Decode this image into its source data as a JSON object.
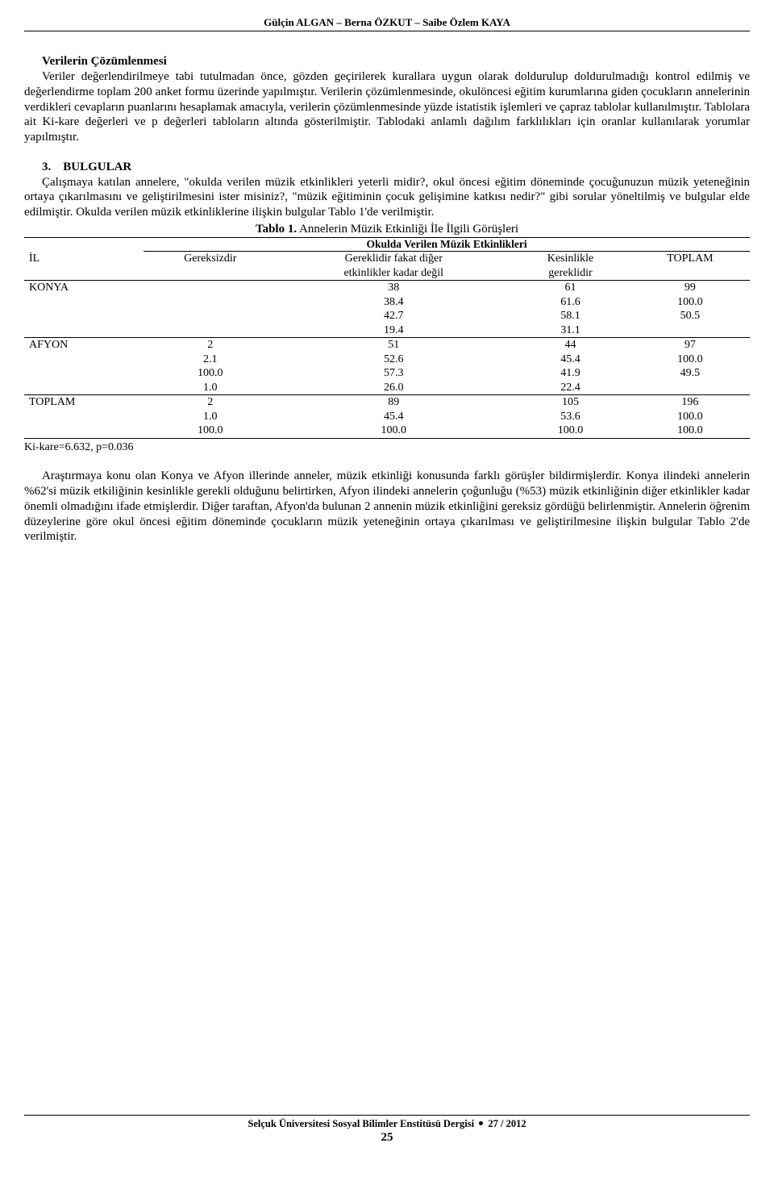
{
  "header": {
    "authors": "Gülçin ALGAN – Berna ÖZKUT – Saibe Özlem KAYA"
  },
  "section1": {
    "title": "Verilerin Çözümlenmesi",
    "para": "Veriler değerlendirilmeye tabi tutulmadan önce, gözden geçirilerek kurallara uygun olarak doldurulup doldurulmadığı kontrol edilmiş ve değerlendirme toplam 200 anket formu üzerinde yapılmıştır. Verilerin çözümlenmesinde, okulöncesi eğitim kurumlarına giden çocukların annelerinin verdikleri cevapların puanlarını hesaplamak amacıyla, verilerin çözümlenmesinde yüzde istatistik işlemleri ve çapraz tablolar kullanılmıştır. Tablolara ait Ki-kare değerleri ve p değerleri tabloların altında gösterilmiştir. Tablodaki anlamlı dağılım farklılıkları için oranlar kullanılarak yorumlar yapılmıştır."
  },
  "section3": {
    "num": "3.",
    "title": "BULGULAR",
    "para": "Çalışmaya katılan annelere, \"okulda verilen müzik etkinlikleri yeterli midir?, okul öncesi eğitim döneminde çocuğunuzun müzik yeteneğinin ortaya çıkarılmasını ve geliştirilmesini ister misiniz?, \"müzik eğitiminin çocuk gelişimine katkısı nedir?\" gibi sorular yöneltilmiş ve bulgular elde edilmiştir. Okulda verilen müzik etkinliklerine ilişkin bulgular Tablo 1'de verilmiştir."
  },
  "table1": {
    "title_bold": "Tablo 1.",
    "title_rest": " Annelerin Müzik Etkinliği İle İlgili Görüşleri",
    "subtitle": "Okulda Verilen Müzik Etkinlikleri",
    "cols": {
      "il": "İL",
      "c1": "Gereksizdir",
      "c2a": "Gereklidir fakat diğer",
      "c2b": "etkinlikler kadar değil",
      "c3a": "Kesinlikle",
      "c3b": "gereklidir",
      "c4": "TOPLAM"
    },
    "rows": {
      "konya": {
        "label": "KONYA",
        "c1": [
          "",
          "",
          "",
          ""
        ],
        "c2": [
          "38",
          "38.4",
          "42.7",
          "19.4"
        ],
        "c3": [
          "61",
          "61.6",
          "58.1",
          "31.1"
        ],
        "c4": [
          "99",
          "100.0",
          "50.5",
          ""
        ]
      },
      "afyon": {
        "label": "AFYON",
        "c1": [
          "2",
          "2.1",
          "100.0",
          "1.0"
        ],
        "c2": [
          "51",
          "52.6",
          "57.3",
          "26.0"
        ],
        "c3": [
          "44",
          "45.4",
          "41.9",
          "22.4"
        ],
        "c4": [
          "97",
          "100.0",
          "49.5",
          ""
        ]
      },
      "toplam": {
        "label": "TOPLAM",
        "c1": [
          "2",
          "1.0",
          "100.0"
        ],
        "c2": [
          "89",
          "45.4",
          "100.0"
        ],
        "c3": [
          "105",
          "53.6",
          "100.0"
        ],
        "c4": [
          "196",
          "100.0",
          "100.0"
        ]
      }
    },
    "kikare": "Ki-kare=6.632, p=0.036"
  },
  "para_after": "Araştırmaya konu olan Konya ve Afyon illerinde anneler, müzik etkinliği konusunda farklı görüşler bildirmişlerdir. Konya ilindeki annelerin %62'si müzik etkiliğinin kesinlikle gerekli olduğunu belirtirken, Afyon ilindeki annelerin çoğunluğu (%53) müzik etkinliğinin diğer etkinlikler kadar önemli olmadığını ifade etmişlerdir. Diğer taraftan, Afyon'da bulunan 2 annenin müzik etkinliğini gereksiz gördüğü belirlenmiştir. Annelerin öğrenim düzeylerine göre okul öncesi eğitim döneminde çocukların müzik yeteneğinin ortaya çıkarılması ve geliştirilmesine ilişkin bulgular Tablo 2'de verilmiştir.",
  "footer": {
    "journal": "Selçuk Üniversitesi Sosyal Bilimler Enstitüsü Dergisi",
    "issue": "27 / 2012",
    "page": "25"
  }
}
